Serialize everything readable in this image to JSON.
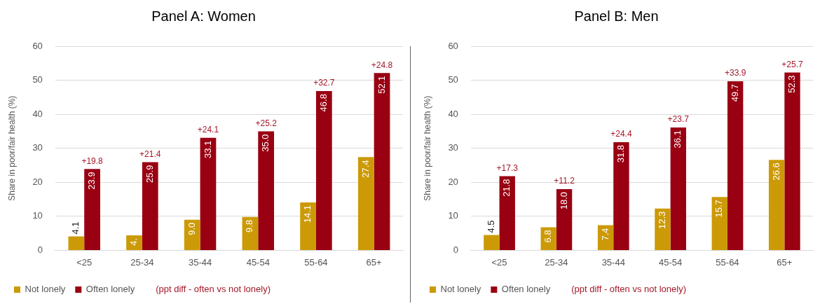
{
  "chart_data": [
    {
      "type": "bar",
      "title": "Panel A: Women",
      "ylabel": "Share in poor/fair health (%)",
      "categories": [
        "<25",
        "25-34",
        "35-44",
        "45-54",
        "55-64",
        "65+"
      ],
      "series": [
        {
          "name": "Not lonely",
          "color": "#cc9a06",
          "values": [
            4.1,
            4.4,
            9.0,
            9.8,
            14.1,
            27.4
          ],
          "value_labels": [
            "4.1",
            "4.",
            "9.0",
            "9.8",
            "14.1",
            "27.4"
          ]
        },
        {
          "name": "Often lonely",
          "color": "#990012",
          "values": [
            23.9,
            25.9,
            33.1,
            35.0,
            46.8,
            52.1
          ],
          "value_labels": [
            "23.9",
            "25.9",
            "33.1",
            "35.0",
            "46.8",
            "52.1"
          ]
        }
      ],
      "ylim": [
        0,
        60
      ],
      "yticks": [
        0,
        10,
        20,
        30,
        40,
        50,
        60
      ],
      "grid": "y",
      "legend": "bottom",
      "annotations": [
        {
          "text": "+19.8",
          "x": "<25",
          "y": 23.9
        },
        {
          "text": "+21.4",
          "x": "25-34",
          "y": 25.9
        },
        {
          "text": "+24.1",
          "x": "35-44",
          "y": 33.1
        },
        {
          "text": "+25.2",
          "x": "45-54",
          "y": 35.0
        },
        {
          "text": "+32.7",
          "x": "55-64",
          "y": 46.8
        },
        {
          "text": "+24.8",
          "x": "65+",
          "y": 52.1
        },
        "(ppt diff - often vs not lonely)"
      ]
    },
    {
      "type": "bar",
      "title": "Panel B: Men",
      "ylabel": "Share in poor/fair health (%)",
      "categories": [
        "<25",
        "25-34",
        "35-44",
        "45-54",
        "55-64",
        "65+"
      ],
      "series": [
        {
          "name": "Not lonely",
          "color": "#cc9a06",
          "values": [
            4.5,
            6.8,
            7.4,
            12.3,
            15.7,
            26.6
          ],
          "value_labels": [
            "4.5",
            "6.8",
            "7.4",
            "12.3",
            "15.7",
            "26.6"
          ]
        },
        {
          "name": "Often lonely",
          "color": "#990012",
          "values": [
            21.8,
            18.0,
            31.8,
            36.1,
            49.7,
            52.3
          ],
          "value_labels": [
            "21.8",
            "18.0",
            "31.8",
            "36.1",
            "49.7",
            "52.3"
          ]
        }
      ],
      "ylim": [
        0,
        60
      ],
      "yticks": [
        0,
        10,
        20,
        30,
        40,
        50,
        60
      ],
      "grid": "y",
      "legend": "bottom",
      "annotations": [
        {
          "text": "+17.3",
          "x": "<25",
          "y": 21.8
        },
        {
          "text": "+11.2",
          "x": "25-34",
          "y": 18.0
        },
        {
          "text": "+24.4",
          "x": "35-44",
          "y": 31.8
        },
        {
          "text": "+23.7",
          "x": "45-54",
          "y": 36.1
        },
        {
          "text": "+33.9",
          "x": "55-64",
          "y": 49.7
        },
        {
          "text": "+25.7",
          "x": "65+",
          "y": 52.3
        },
        "(ppt diff - often vs not lonely)"
      ]
    }
  ]
}
